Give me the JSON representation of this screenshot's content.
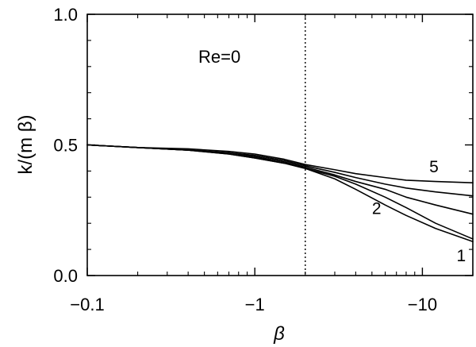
{
  "chart_data": {
    "type": "line",
    "title": "",
    "annotation": "Re=0",
    "xlabel": "β",
    "ylabel": "k/(m β)",
    "x_scale": "log",
    "x_axis_direction": "increasing magnitude to the right (β negative)",
    "xlim": [
      -0.1,
      -20
    ],
    "ylim": [
      0.0,
      1.0
    ],
    "x_ticks": [
      "−0.1",
      "−1",
      "−10"
    ],
    "y_ticks": [
      "0.0",
      "0.5",
      "1.0"
    ],
    "reference_line": {
      "x": -2,
      "style": "dotted"
    },
    "grid": false,
    "legend": "none",
    "series": [
      {
        "name": "1",
        "x": [
          -0.1,
          -0.2,
          -0.4,
          -0.7,
          -1.0,
          -1.5,
          -2.0,
          -3.0,
          -4.0,
          -6.0,
          -8.0,
          -12.0,
          -20.0
        ],
        "y": [
          0.5,
          0.49,
          0.48,
          0.465,
          0.45,
          0.43,
          0.41,
          0.37,
          0.33,
          0.27,
          0.23,
          0.18,
          0.13
        ]
      },
      {
        "name": "2",
        "x": [
          -0.1,
          -0.2,
          -0.4,
          -0.7,
          -1.0,
          -1.5,
          -2.0,
          -3.0,
          -4.0,
          -6.0,
          -8.0,
          -12.0,
          -20.0
        ],
        "y": [
          0.5,
          0.49,
          0.48,
          0.465,
          0.45,
          0.43,
          0.41,
          0.38,
          0.35,
          0.3,
          0.26,
          0.2,
          0.14
        ]
      },
      {
        "name": "",
        "x": [
          -0.1,
          -0.2,
          -0.4,
          -0.7,
          -1.0,
          -1.5,
          -2.0,
          -3.0,
          -4.0,
          -6.0,
          -8.0,
          -12.0,
          -20.0
        ],
        "y": [
          0.5,
          0.49,
          0.48,
          0.47,
          0.455,
          0.435,
          0.415,
          0.385,
          0.36,
          0.33,
          0.3,
          0.27,
          0.235
        ]
      },
      {
        "name": "",
        "x": [
          -0.1,
          -0.2,
          -0.4,
          -0.7,
          -1.0,
          -1.5,
          -2.0,
          -3.0,
          -4.0,
          -6.0,
          -8.0,
          -12.0,
          -20.0
        ],
        "y": [
          0.5,
          0.49,
          0.48,
          0.47,
          0.46,
          0.44,
          0.42,
          0.395,
          0.375,
          0.35,
          0.335,
          0.32,
          0.305
        ]
      },
      {
        "name": "5",
        "x": [
          -0.1,
          -0.2,
          -0.4,
          -0.7,
          -1.0,
          -1.5,
          -2.0,
          -3.0,
          -4.0,
          -6.0,
          -8.0,
          -12.0,
          -20.0
        ],
        "y": [
          0.5,
          0.49,
          0.485,
          0.475,
          0.465,
          0.445,
          0.425,
          0.405,
          0.39,
          0.375,
          0.365,
          0.36,
          0.355
        ]
      }
    ]
  }
}
